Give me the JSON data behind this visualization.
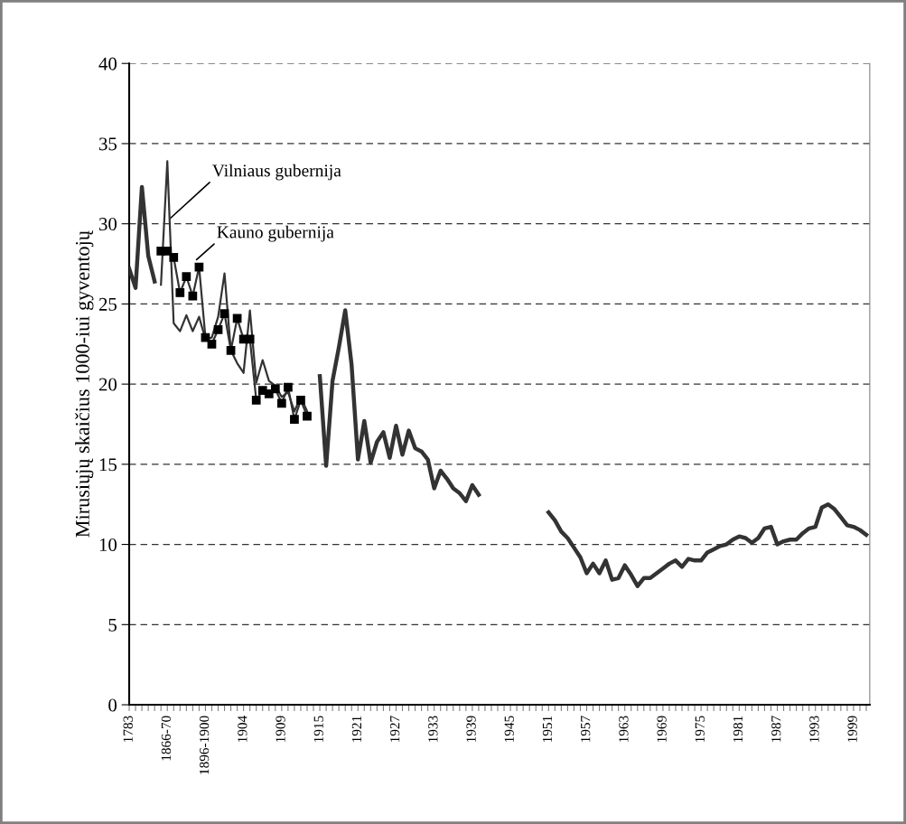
{
  "chart_data": {
    "type": "line",
    "ylabel": "Mirusiųjų skaičius 1000-iui gyventojų",
    "categories": [
      "1783",
      null,
      null,
      null,
      null,
      null,
      "1866-70",
      null,
      null,
      null,
      null,
      null,
      "1896-1900",
      null,
      null,
      null,
      null,
      null,
      "1904",
      null,
      null,
      null,
      null,
      null,
      "1909",
      null,
      null,
      null,
      null,
      null,
      "1915",
      null,
      null,
      null,
      null,
      null,
      "1921",
      null,
      null,
      null,
      null,
      null,
      "1927",
      null,
      null,
      null,
      null,
      null,
      "1933",
      null,
      null,
      null,
      null,
      null,
      "1939",
      null,
      null,
      null,
      null,
      null,
      "1945",
      null,
      null,
      null,
      null,
      null,
      "1951",
      null,
      null,
      null,
      null,
      null,
      "1957",
      null,
      null,
      null,
      null,
      null,
      "1963",
      null,
      null,
      null,
      null,
      null,
      "1969",
      null,
      null,
      null,
      null,
      null,
      "1975",
      null,
      null,
      null,
      null,
      null,
      "1981",
      null,
      null,
      null,
      null,
      null,
      "1987",
      null,
      null,
      null,
      null,
      null,
      "1993",
      null,
      null,
      null,
      null,
      null,
      "1999",
      null,
      null
    ],
    "series": [
      {
        "color": "#333333",
        "values": [
          27.2,
          26.0,
          32.3,
          28.0,
          26.4,
          null,
          null,
          null,
          null,
          null,
          null,
          null,
          null,
          null,
          null,
          null,
          null,
          null,
          null,
          null,
          null,
          null,
          null,
          null,
          null,
          null,
          null,
          null,
          null,
          null,
          20.5,
          14.9,
          20.2,
          22.3,
          24.6,
          21.2,
          15.3,
          17.7,
          15.1,
          16.4,
          17.0,
          15.4,
          17.4,
          15.6,
          17.1,
          16.0,
          15.8,
          15.3,
          13.5,
          14.6,
          14.1,
          13.5,
          13.2,
          12.7,
          13.7,
          13.1,
          null,
          null,
          null,
          null,
          null,
          null,
          null,
          null,
          null,
          null,
          12.0,
          11.5,
          10.8,
          10.4,
          9.8,
          9.2,
          8.2,
          8.8,
          8.2,
          9.0,
          7.8,
          7.9,
          8.7,
          8.1,
          7.4,
          7.9,
          7.9,
          8.2,
          8.5,
          8.8,
          9.0,
          8.6,
          9.1,
          9.0,
          9.0,
          9.5,
          9.7,
          9.9,
          10.0,
          10.3,
          10.5,
          10.4,
          10.1,
          10.4,
          11.0,
          11.1,
          10.0,
          10.2,
          10.3,
          10.3,
          10.7,
          11.0,
          11.1,
          12.3,
          12.5,
          12.2,
          11.7,
          11.2,
          11.1,
          10.9,
          10.6
        ]
      },
      {
        "name": "Vilniaus gubernija",
        "color": "#333333",
        "values": [
          null,
          null,
          null,
          null,
          null,
          26.2,
          33.9,
          23.8,
          23.3,
          24.3,
          23.3,
          24.2,
          22.8,
          22.9,
          24.2,
          26.9,
          22.1,
          21.3,
          20.7,
          24.6,
          20.1,
          21.5,
          20.2,
          19.9,
          19.2,
          19.5,
          18.3,
          19.2,
          18.3,
          null,
          null,
          null,
          null,
          null,
          null,
          null,
          null,
          null,
          null,
          null,
          null,
          null,
          null,
          null,
          null,
          null,
          null,
          null,
          null,
          null,
          null,
          null,
          null,
          null,
          null,
          null,
          null,
          null,
          null,
          null,
          null,
          null,
          null,
          null,
          null,
          null,
          null,
          null,
          null,
          null,
          null,
          null,
          null,
          null,
          null,
          null,
          null,
          null,
          null,
          null,
          null,
          null,
          null,
          null,
          null,
          null,
          null,
          null,
          null,
          null,
          null,
          null,
          null,
          null,
          null,
          null,
          null,
          null,
          null,
          null,
          null,
          null,
          null,
          null,
          null,
          null,
          null,
          null,
          null,
          null,
          null,
          null,
          null,
          null,
          null,
          null,
          null
        ]
      },
      {
        "name": "Kauno gubernija",
        "color": "#333333",
        "marker": "square",
        "values": [
          null,
          null,
          null,
          null,
          null,
          28.3,
          28.3,
          27.9,
          25.7,
          26.7,
          25.5,
          27.3,
          22.9,
          22.5,
          23.4,
          24.4,
          22.1,
          24.1,
          22.8,
          22.8,
          19.0,
          19.6,
          19.4,
          19.7,
          18.8,
          19.8,
          17.8,
          19.0,
          18.0,
          null,
          null,
          null,
          null,
          null,
          null,
          null,
          null,
          null,
          null,
          null,
          null,
          null,
          null,
          null,
          null,
          null,
          null,
          null,
          null,
          null,
          null,
          null,
          null,
          null,
          null,
          null,
          null,
          null,
          null,
          null,
          null,
          null,
          null,
          null,
          null,
          null,
          null,
          null,
          null,
          null,
          null,
          null,
          null,
          null,
          null,
          null,
          null,
          null,
          null,
          null,
          null,
          null,
          null,
          null,
          null,
          null,
          null,
          null,
          null,
          null,
          null,
          null,
          null,
          null,
          null,
          null,
          null,
          null,
          null,
          null,
          null,
          null,
          null,
          null,
          null,
          null,
          null,
          null,
          null,
          null,
          null,
          null,
          null,
          null,
          null,
          null,
          null
        ]
      }
    ],
    "ylim": [
      0,
      40
    ],
    "yticks": [
      0,
      5,
      10,
      15,
      20,
      25,
      30,
      35,
      40
    ],
    "grid": "y",
    "legend": false
  }
}
